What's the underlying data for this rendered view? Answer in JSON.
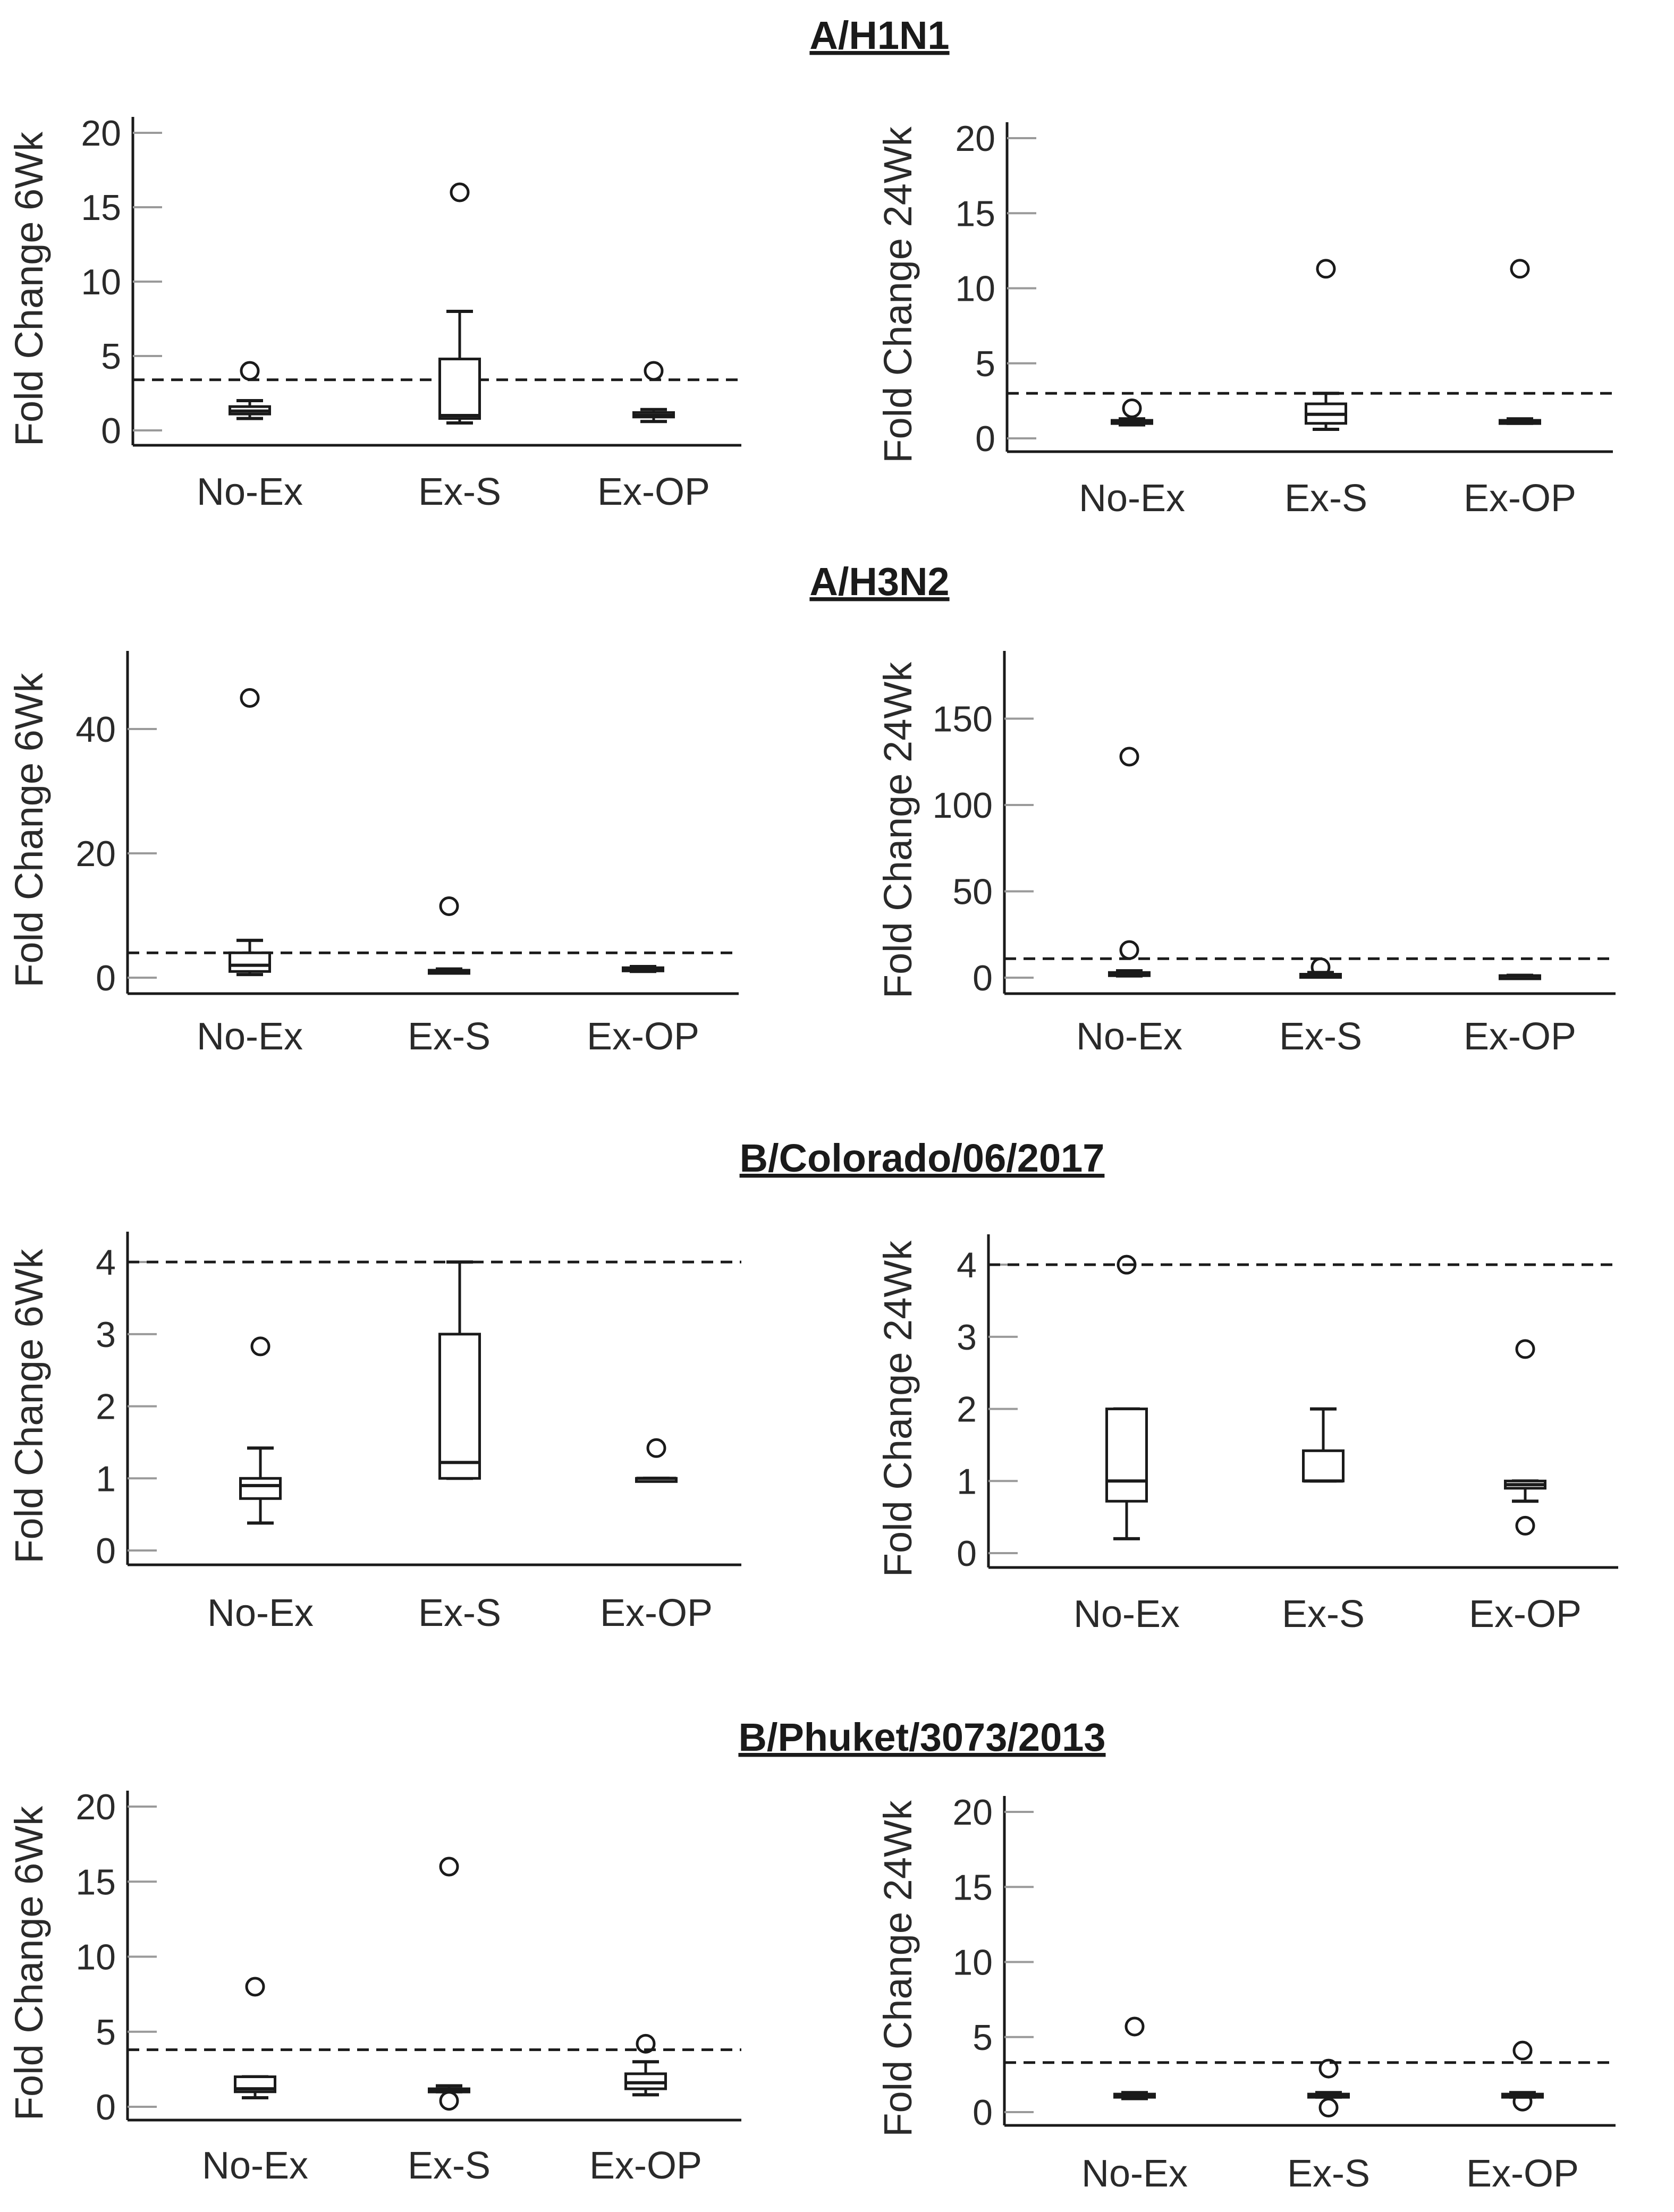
{
  "chart_data": [
    {
      "type": "box",
      "group": "A/H1N1",
      "ylabel": "Fold Change 6Wk",
      "categories": [
        "No-Ex",
        "Ex-S",
        "Ex-OP"
      ],
      "ylim": [
        0,
        20
      ],
      "yticks": [
        0,
        5,
        10,
        15,
        20
      ],
      "threshold": 3.4,
      "boxes": [
        {
          "category": "No-Ex",
          "whisker_low": 0.8,
          "q1": 1.1,
          "median": 1.3,
          "q3": 1.6,
          "whisker_high": 2.0,
          "outliers": [
            4.0
          ]
        },
        {
          "category": "Ex-S",
          "whisker_low": 0.5,
          "q1": 0.8,
          "median": 1.0,
          "q3": 4.8,
          "whisker_high": 8.0,
          "outliers": [
            16.0
          ]
        },
        {
          "category": "Ex-OP",
          "whisker_low": 0.6,
          "q1": 0.9,
          "median": 1.0,
          "q3": 1.2,
          "whisker_high": 1.4,
          "outliers": [
            4.0
          ]
        }
      ]
    },
    {
      "type": "box",
      "group": "A/H1N1",
      "ylabel": "Fold Change 24Wk",
      "categories": [
        "No-Ex",
        "Ex-S",
        "Ex-OP"
      ],
      "ylim": [
        0,
        20
      ],
      "yticks": [
        0,
        5,
        10,
        15,
        20
      ],
      "threshold": 3.0,
      "boxes": [
        {
          "category": "No-Ex",
          "whisker_low": 0.9,
          "q1": 1.0,
          "median": 1.1,
          "q3": 1.2,
          "whisker_high": 1.3,
          "outliers": [
            2.0
          ]
        },
        {
          "category": "Ex-S",
          "whisker_low": 0.6,
          "q1": 1.0,
          "median": 1.6,
          "q3": 2.3,
          "whisker_high": 3.0,
          "outliers": [
            11.3
          ]
        },
        {
          "category": "Ex-OP",
          "whisker_low": 1.0,
          "q1": 1.0,
          "median": 1.1,
          "q3": 1.2,
          "whisker_high": 1.3,
          "outliers": [
            11.3
          ]
        }
      ]
    },
    {
      "type": "box",
      "group": "A/H3N2",
      "ylabel": "Fold Change 6Wk",
      "categories": [
        "No-Ex",
        "Ex-S",
        "Ex-OP"
      ],
      "ylim": [
        0,
        50
      ],
      "yticks": [
        0,
        20,
        40
      ],
      "threshold": 4.0,
      "boxes": [
        {
          "category": "No-Ex",
          "whisker_low": 0.5,
          "q1": 1.0,
          "median": 2.0,
          "q3": 4.0,
          "whisker_high": 6.0,
          "outliers": [
            45.0
          ]
        },
        {
          "category": "Ex-S",
          "whisker_low": 0.8,
          "q1": 1.0,
          "median": 1.0,
          "q3": 1.2,
          "whisker_high": 1.4,
          "outliers": [
            11.5
          ]
        },
        {
          "category": "Ex-OP",
          "whisker_low": 1.0,
          "q1": 1.1,
          "median": 1.3,
          "q3": 1.6,
          "whisker_high": 1.8,
          "outliers": []
        }
      ]
    },
    {
      "type": "box",
      "group": "A/H3N2",
      "ylabel": "Fold Change 24Wk",
      "categories": [
        "No-Ex",
        "Ex-S",
        "Ex-OP"
      ],
      "ylim": [
        0,
        180
      ],
      "yticks": [
        0,
        50,
        100,
        150
      ],
      "threshold": 11.0,
      "boxes": [
        {
          "category": "No-Ex",
          "whisker_low": 1.0,
          "q1": 1.5,
          "median": 2.0,
          "q3": 3.0,
          "whisker_high": 4.0,
          "outliers": [
            128.0,
            16.0
          ]
        },
        {
          "category": "Ex-S",
          "whisker_low": 0.5,
          "q1": 1.0,
          "median": 1.0,
          "q3": 2.0,
          "whisker_high": 3.0,
          "outliers": [
            6.0
          ]
        },
        {
          "category": "Ex-OP",
          "whisker_low": 1.0,
          "q1": 1.0,
          "median": 1.0,
          "q3": 1.2,
          "whisker_high": 1.4,
          "outliers": []
        }
      ]
    },
    {
      "type": "box",
      "group": "B/Colorado/06/2017",
      "ylabel": "Fold Change 6Wk",
      "categories": [
        "No-Ex",
        "Ex-S",
        "Ex-OP"
      ],
      "ylim": [
        0,
        4.2
      ],
      "yticks": [
        0,
        1,
        2,
        3,
        4
      ],
      "threshold": 4.0,
      "boxes": [
        {
          "category": "No-Ex",
          "whisker_low": 0.38,
          "q1": 0.72,
          "median": 0.9,
          "q3": 1.0,
          "whisker_high": 1.42,
          "outliers": [
            2.83
          ]
        },
        {
          "category": "Ex-S",
          "whisker_low": 1.0,
          "q1": 1.0,
          "median": 1.22,
          "q3": 3.0,
          "whisker_high": 4.0,
          "outliers": []
        },
        {
          "category": "Ex-OP",
          "whisker_low": 1.0,
          "q1": 1.0,
          "median": 1.0,
          "q3": 1.0,
          "whisker_high": 1.0,
          "outliers": [
            1.42
          ]
        }
      ]
    },
    {
      "type": "box",
      "group": "B/Colorado/06/2017",
      "ylabel": "Fold Change 24Wk",
      "categories": [
        "No-Ex",
        "Ex-S",
        "Ex-OP"
      ],
      "ylim": [
        0,
        4.2
      ],
      "yticks": [
        0,
        1,
        2,
        3,
        4
      ],
      "threshold": 4.0,
      "boxes": [
        {
          "category": "No-Ex",
          "whisker_low": 0.2,
          "q1": 0.72,
          "median": 1.0,
          "q3": 2.0,
          "whisker_high": 2.0,
          "outliers": [
            4.0
          ]
        },
        {
          "category": "Ex-S",
          "whisker_low": 1.0,
          "q1": 1.0,
          "median": 1.0,
          "q3": 1.42,
          "whisker_high": 2.0,
          "outliers": []
        },
        {
          "category": "Ex-OP",
          "whisker_low": 0.72,
          "q1": 0.9,
          "median": 0.95,
          "q3": 1.0,
          "whisker_high": 1.0,
          "outliers": [
            2.83,
            0.38
          ]
        }
      ]
    },
    {
      "type": "box",
      "group": "B/Phuket/3073/2013",
      "ylabel": "Fold Change 6Wk",
      "categories": [
        "No-Ex",
        "Ex-S",
        "Ex-OP"
      ],
      "ylim": [
        0,
        20
      ],
      "yticks": [
        0,
        5,
        10,
        15,
        20
      ],
      "threshold": 3.8,
      "boxes": [
        {
          "category": "No-Ex",
          "whisker_low": 0.6,
          "q1": 1.0,
          "median": 1.2,
          "q3": 2.0,
          "whisker_high": 2.0,
          "outliers": [
            8.0
          ]
        },
        {
          "category": "Ex-S",
          "whisker_low": 1.0,
          "q1": 1.0,
          "median": 1.1,
          "q3": 1.2,
          "whisker_high": 1.4,
          "outliers": [
            16.0,
            0.4
          ]
        },
        {
          "category": "Ex-OP",
          "whisker_low": 0.8,
          "q1": 1.2,
          "median": 1.6,
          "q3": 2.2,
          "whisker_high": 3.0,
          "outliers": [
            4.2
          ]
        }
      ]
    },
    {
      "type": "box",
      "group": "B/Phuket/3073/2013",
      "ylabel": "Fold Change 24Wk",
      "categories": [
        "No-Ex",
        "Ex-S",
        "Ex-OP"
      ],
      "ylim": [
        0,
        20
      ],
      "yticks": [
        0,
        5,
        10,
        15,
        20
      ],
      "threshold": 3.3,
      "boxes": [
        {
          "category": "No-Ex",
          "whisker_low": 0.9,
          "q1": 1.0,
          "median": 1.1,
          "q3": 1.2,
          "whisker_high": 1.3,
          "outliers": [
            5.7
          ]
        },
        {
          "category": "Ex-S",
          "whisker_low": 1.0,
          "q1": 1.0,
          "median": 1.1,
          "q3": 1.2,
          "whisker_high": 1.3,
          "outliers": [
            2.9,
            0.3
          ]
        },
        {
          "category": "Ex-OP",
          "whisker_low": 1.0,
          "q1": 1.0,
          "median": 1.1,
          "q3": 1.2,
          "whisker_high": 1.3,
          "outliers": [
            4.1,
            0.7
          ]
        }
      ]
    }
  ],
  "titles": [
    "A/H1N1",
    "A/H3N2",
    "B/Colorado/06/2017",
    "B/Phuket/3073/2013"
  ],
  "colors": {
    "ink": "#1a1a1a",
    "tick": "#9a9a9a",
    "box_fill": "#ffffff"
  }
}
